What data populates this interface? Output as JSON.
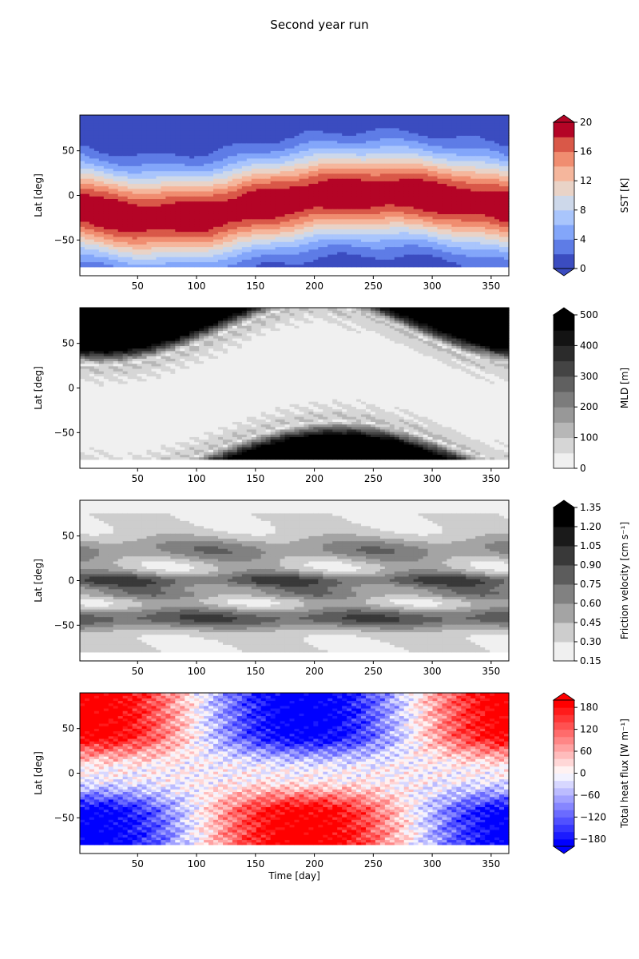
{
  "figure": {
    "title": "Second year run"
  },
  "chart_data": [
    {
      "type": "heatmap",
      "name": "SST panel",
      "ylabel": "Lat [deg]",
      "xlabel": "",
      "xlim": [
        1,
        365
      ],
      "ylim": [
        -90,
        90
      ],
      "xticks": [
        50,
        100,
        150,
        200,
        250,
        300,
        350
      ],
      "yticks": [
        50,
        0,
        -50
      ],
      "colorbar_label": "SST [K]",
      "colorbar_ticks": [
        "0",
        "4",
        "8",
        "12",
        "16",
        "20"
      ],
      "colorbar_range": [
        0,
        20
      ],
      "colormap": "coolwarm",
      "levels": [
        0,
        2,
        4,
        6,
        8,
        10,
        12,
        14,
        16,
        18,
        20
      ],
      "extend": "both",
      "description_data": {
        "max_band_center_lat_by_day": [
          [
            1,
            -18
          ],
          [
            70,
            -20
          ],
          [
            182,
            0
          ],
          [
            250,
            20
          ],
          [
            365,
            -18
          ]
        ],
        "equator_value": 20,
        "pole_value": 2
      }
    },
    {
      "type": "heatmap",
      "name": "MLD panel",
      "ylabel": "Lat [deg]",
      "xlabel": "",
      "xlim": [
        1,
        365
      ],
      "ylim": [
        -90,
        90
      ],
      "xticks": [
        50,
        100,
        150,
        200,
        250,
        300,
        350
      ],
      "yticks": [
        50,
        0,
        -50
      ],
      "colorbar_label": "MLD [m]",
      "colorbar_ticks": [
        "0",
        "100",
        "200",
        "300",
        "400",
        "500"
      ],
      "colorbar_range": [
        0,
        500
      ],
      "colormap": "Greys",
      "levels": [
        0,
        50,
        100,
        150,
        200,
        250,
        300,
        350,
        400,
        450,
        500
      ],
      "extend": "max",
      "description_data": {
        "north_deep_days": [
          [
            1,
            130
          ],
          [
            250,
            365
          ]
        ],
        "south_deep_days": [
          70,
          320
        ],
        "deep_value": 500,
        "shallow_value": 20
      }
    },
    {
      "type": "heatmap",
      "name": "Friction velocity panel",
      "ylabel": "Lat [deg]",
      "xlabel": "",
      "xlim": [
        1,
        365
      ],
      "ylim": [
        -90,
        90
      ],
      "xticks": [
        50,
        100,
        150,
        200,
        250,
        300,
        350
      ],
      "yticks": [
        50,
        0,
        -50
      ],
      "colorbar_label": "Friction velocity [cm s⁻¹]",
      "colorbar_ticks": [
        "0.15",
        "0.30",
        "0.45",
        "0.60",
        "0.75",
        "0.90",
        "1.05",
        "1.20",
        "1.35"
      ],
      "colorbar_range": [
        0.15,
        1.35
      ],
      "colormap": "Greys",
      "levels": [
        0.15,
        0.3,
        0.45,
        0.6,
        0.75,
        0.9,
        1.05,
        1.2,
        1.35
      ],
      "extend": "max",
      "description_data": {
        "peak_lat": 0,
        "secondary_peak_lat": -45
      }
    },
    {
      "type": "heatmap",
      "name": "Total heat flux panel",
      "ylabel": "Lat [deg]",
      "xlabel": "Time [day]",
      "xlim": [
        1,
        365
      ],
      "ylim": [
        -90,
        90
      ],
      "xticks": [
        50,
        100,
        150,
        200,
        250,
        300,
        350
      ],
      "yticks": [
        50,
        0,
        -50
      ],
      "colorbar_label": "Total heat flux [W m⁻¹]",
      "colorbar_ticks": [
        "180",
        "120",
        "60",
        "0",
        "−60",
        "−120",
        "−180"
      ],
      "colorbar_range": [
        -200,
        200
      ],
      "colormap": "bwr",
      "levels": [
        -200,
        -180,
        -160,
        -140,
        -120,
        -100,
        -80,
        -60,
        -40,
        -20,
        0,
        20,
        40,
        60,
        80,
        100,
        120,
        140,
        160,
        180,
        200
      ],
      "extend": "both",
      "description_data": {
        "north_positive_days": [
          [
            1,
            80
          ],
          [
            270,
            365
          ]
        ],
        "south_positive_days": [
          90,
          290
        ],
        "amplitude": 200
      }
    }
  ],
  "colors": {
    "coolwarm": [
      "#3b4cc0",
      "#5a78e4",
      "#7b9ff9",
      "#9ebeff",
      "#c0d4f5",
      "#dddcdc",
      "#f2cbb7",
      "#f7ac8e",
      "#ee8468",
      "#d65244",
      "#b40426"
    ],
    "greys": [
      "#f0f0f0",
      "#d9d9d9",
      "#bdbdbd",
      "#a0a0a0",
      "#888888",
      "#6e6e6e",
      "#555555",
      "#3c3c3c",
      "#262626",
      "#111111",
      "#000000"
    ],
    "bwr": [
      "#0000ff",
      "#ff0000"
    ]
  }
}
